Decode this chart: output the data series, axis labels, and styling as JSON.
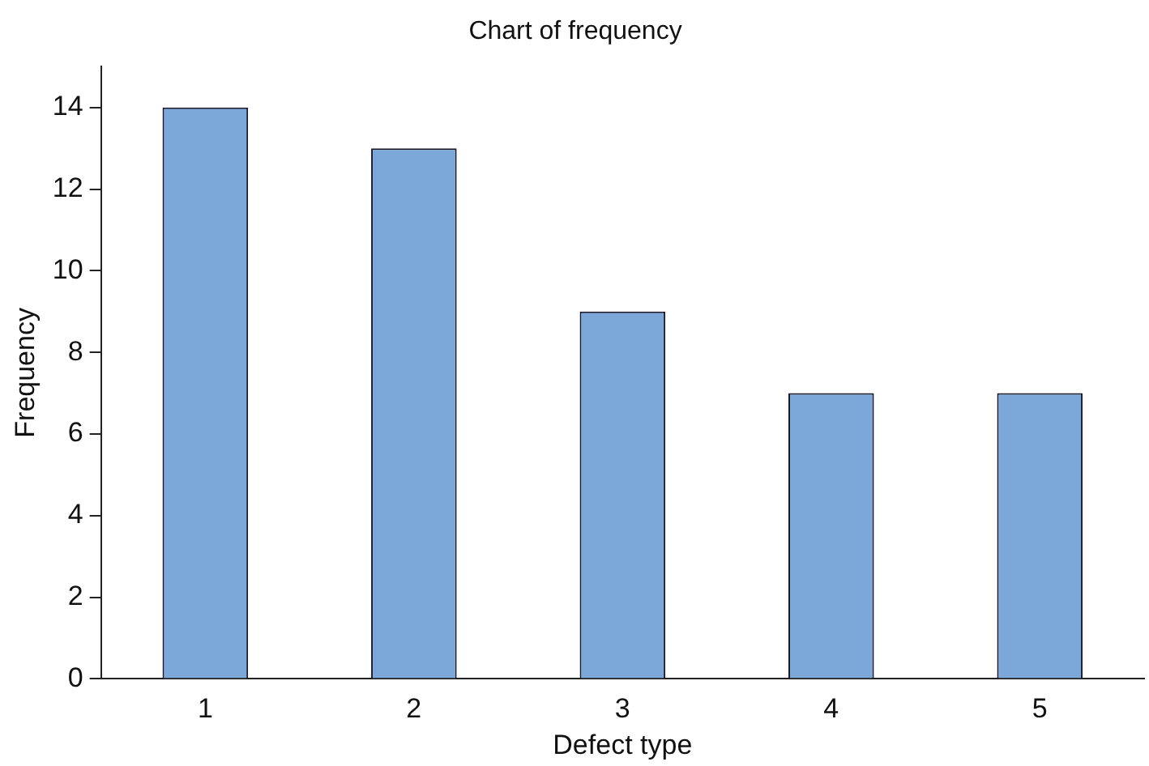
{
  "chart_data": {
    "type": "bar",
    "title": "Chart of frequency",
    "xlabel": "Defect type",
    "ylabel": "Frequency",
    "categories": [
      "1",
      "2",
      "3",
      "4",
      "5"
    ],
    "values": [
      14,
      13,
      9,
      7,
      7
    ],
    "color": "#7ba7d9",
    "ylim": [
      0,
      15
    ],
    "yticks": [
      0,
      2,
      4,
      6,
      8,
      10,
      12,
      14
    ],
    "grid": false,
    "legend": false
  }
}
